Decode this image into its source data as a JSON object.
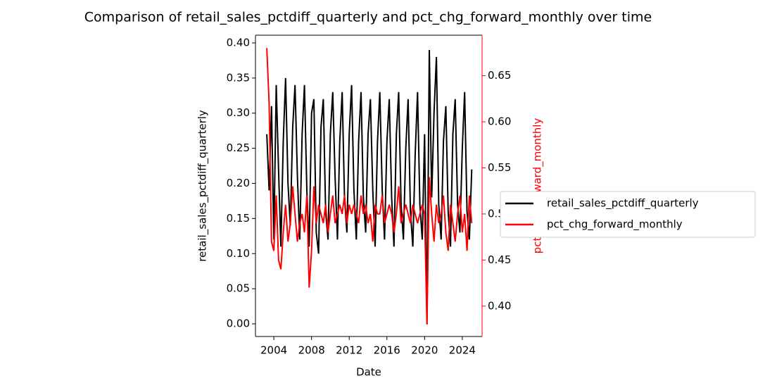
{
  "chart_data": {
    "type": "line",
    "title": "Comparison of retail_sales_pctdiff_quarterly and pct_chg_forward_monthly over time",
    "x_label": "Date",
    "y_label": "retail_sales_pctdiff_quarterly",
    "y2_label": "pct_chg_forward_monthly",
    "x": [
      2003.25,
      2003.5,
      2003.75,
      2004.0,
      2004.25,
      2004.5,
      2004.75,
      2005.0,
      2005.25,
      2005.5,
      2005.75,
      2006.0,
      2006.25,
      2006.5,
      2006.75,
      2007.0,
      2007.25,
      2007.5,
      2007.75,
      2008.0,
      2008.25,
      2008.5,
      2008.75,
      2009.0,
      2009.25,
      2009.5,
      2009.75,
      2010.0,
      2010.25,
      2010.5,
      2010.75,
      2011.0,
      2011.25,
      2011.5,
      2011.75,
      2012.0,
      2012.25,
      2012.5,
      2012.75,
      2013.0,
      2013.25,
      2013.5,
      2013.75,
      2014.0,
      2014.25,
      2014.5,
      2014.75,
      2015.0,
      2015.25,
      2015.5,
      2015.75,
      2016.0,
      2016.25,
      2016.5,
      2016.75,
      2017.0,
      2017.25,
      2017.5,
      2017.75,
      2018.0,
      2018.25,
      2018.5,
      2018.75,
      2019.0,
      2019.25,
      2019.5,
      2019.75,
      2020.0,
      2020.25,
      2020.5,
      2020.75,
      2021.0,
      2021.25,
      2021.5,
      2021.75,
      2022.0,
      2022.25,
      2022.5,
      2022.75,
      2023.0,
      2023.25,
      2023.5,
      2023.75,
      2024.0,
      2024.25,
      2024.5,
      2024.75,
      2025.0
    ],
    "series": [
      {
        "name": "retail_sales_pctdiff_quarterly",
        "color": "#000000",
        "axis": "y",
        "values": [
          0.27,
          0.19,
          0.31,
          0.12,
          0.34,
          0.22,
          0.11,
          0.26,
          0.35,
          0.2,
          0.14,
          0.28,
          0.34,
          0.21,
          0.12,
          0.27,
          0.34,
          0.19,
          0.11,
          0.3,
          0.32,
          0.13,
          0.1,
          0.28,
          0.32,
          0.16,
          0.12,
          0.27,
          0.33,
          0.21,
          0.12,
          0.26,
          0.33,
          0.18,
          0.13,
          0.27,
          0.34,
          0.19,
          0.12,
          0.26,
          0.33,
          0.18,
          0.13,
          0.27,
          0.32,
          0.19,
          0.11,
          0.26,
          0.33,
          0.19,
          0.12,
          0.26,
          0.32,
          0.18,
          0.11,
          0.27,
          0.33,
          0.17,
          0.12,
          0.25,
          0.32,
          0.16,
          0.11,
          0.24,
          0.33,
          0.17,
          0.12,
          0.27,
          0.0,
          0.39,
          0.18,
          0.3,
          0.38,
          0.17,
          0.12,
          0.26,
          0.31,
          0.16,
          0.11,
          0.27,
          0.32,
          0.17,
          0.13,
          0.25,
          0.33,
          0.16,
          0.12,
          0.22
        ]
      },
      {
        "name": "pct_chg_forward_monthly",
        "color": "#ff0000",
        "axis": "y2",
        "values": [
          0.68,
          0.62,
          0.47,
          0.46,
          0.52,
          0.45,
          0.44,
          0.48,
          0.51,
          0.47,
          0.49,
          0.53,
          0.5,
          0.47,
          0.49,
          0.5,
          0.48,
          0.52,
          0.42,
          0.46,
          0.53,
          0.49,
          0.51,
          0.5,
          0.49,
          0.51,
          0.48,
          0.5,
          0.52,
          0.49,
          0.5,
          0.51,
          0.5,
          0.52,
          0.49,
          0.51,
          0.5,
          0.51,
          0.5,
          0.49,
          0.52,
          0.5,
          0.51,
          0.49,
          0.5,
          0.47,
          0.51,
          0.5,
          0.5,
          0.52,
          0.49,
          0.5,
          0.51,
          0.5,
          0.48,
          0.5,
          0.53,
          0.49,
          0.5,
          0.51,
          0.5,
          0.49,
          0.51,
          0.5,
          0.49,
          0.5,
          0.51,
          0.5,
          0.38,
          0.54,
          0.5,
          0.47,
          0.51,
          0.49,
          0.5,
          0.52,
          0.48,
          0.46,
          0.51,
          0.49,
          0.47,
          0.5,
          0.52,
          0.48,
          0.5,
          0.46,
          0.52,
          0.49
        ]
      }
    ],
    "xlim": [
      2002.05,
      2026.1
    ],
    "xticks": [
      2004,
      2008,
      2012,
      2016,
      2020,
      2024
    ],
    "ylim": [
      -0.018,
      0.411
    ],
    "yticks": [
      {
        "value": 0,
        "label": "0.00"
      },
      {
        "value": 0.05,
        "label": "0.05"
      },
      {
        "value": 0.1,
        "label": "0.10"
      },
      {
        "value": 0.15,
        "label": "0.15"
      },
      {
        "value": 0.2,
        "label": "0.20"
      },
      {
        "value": 0.25,
        "label": "0.25"
      },
      {
        "value": 0.3,
        "label": "0.30"
      },
      {
        "value": 0.35,
        "label": "0.35"
      },
      {
        "value": 0.4,
        "label": "0.40"
      }
    ],
    "y2lim": [
      0.367,
      0.694
    ],
    "y2ticks": [
      {
        "value": 0.4,
        "label": "0.40"
      },
      {
        "value": 0.45,
        "label": "0.45"
      },
      {
        "value": 0.5,
        "label": "0.50"
      },
      {
        "value": 0.55,
        "label": "0.55"
      },
      {
        "value": 0.6,
        "label": "0.60"
      },
      {
        "value": 0.65,
        "label": "0.65"
      }
    ],
    "y2_color": "#ff0000",
    "legend": "outside right"
  }
}
